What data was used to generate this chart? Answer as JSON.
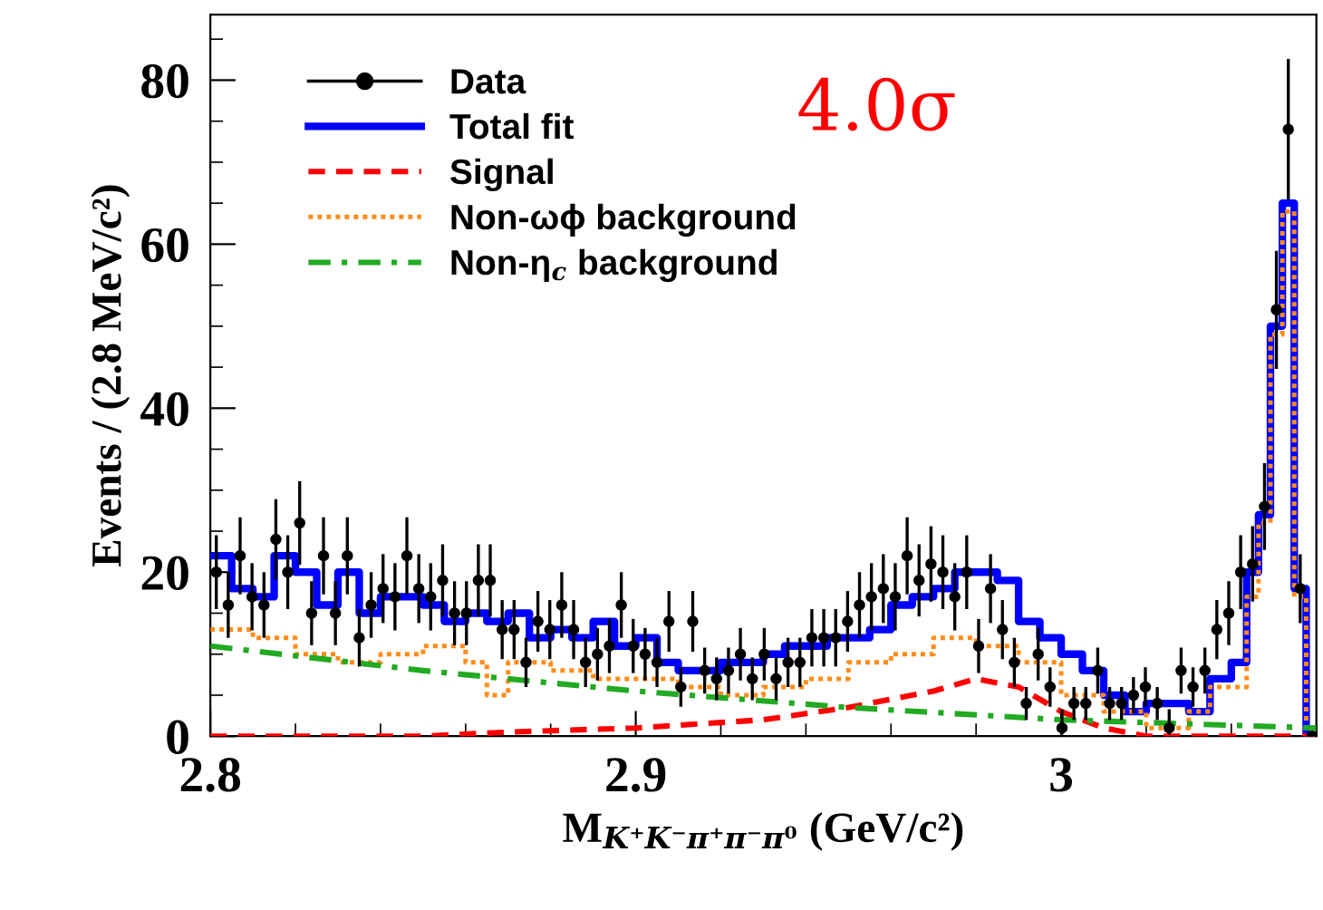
{
  "chart_data": {
    "type": "scatter",
    "xlabel": "M$_{K⁺K⁻π⁺π⁻π⁰}$ (GeV/c²)",
    "ylabel": "Events / (2.8 MeV/c²)",
    "annotations": [
      "4.0σ"
    ],
    "xlim": [
      2.8,
      3.06
    ],
    "xticks": [
      2.8,
      2.9,
      {
        "value": 3.0,
        "label": "3"
      }
    ],
    "ylim": [
      0,
      88
    ],
    "yticks": [
      0,
      20,
      40,
      60,
      80
    ],
    "grid": false,
    "legend": "top left",
    "series": [
      {
        "name": "Data",
        "color": "#000000",
        "marker": "circle",
        "x": [
          2.8014,
          2.8042,
          2.807,
          2.8098,
          2.8126,
          2.8154,
          2.8182,
          2.821,
          2.8238,
          2.8266,
          2.8294,
          2.8322,
          2.835,
          2.8378,
          2.8406,
          2.8434,
          2.8462,
          2.849,
          2.8518,
          2.8546,
          2.8574,
          2.8602,
          2.863,
          2.8658,
          2.8686,
          2.8714,
          2.8742,
          2.877,
          2.8798,
          2.8826,
          2.8854,
          2.8882,
          2.891,
          2.8938,
          2.8966,
          2.8994,
          2.9022,
          2.905,
          2.9078,
          2.9106,
          2.9134,
          2.9162,
          2.919,
          2.9218,
          2.9246,
          2.9274,
          2.9302,
          2.933,
          2.9358,
          2.9386,
          2.9414,
          2.9442,
          2.947,
          2.9498,
          2.9526,
          2.9554,
          2.9582,
          2.961,
          2.9638,
          2.9666,
          2.9694,
          2.9722,
          2.975,
          2.9778,
          2.9806,
          2.9834,
          2.9862,
          2.989,
          2.9918,
          2.9946,
          2.9974,
          3.0002,
          3.003,
          3.0058,
          3.0086,
          3.0114,
          3.0142,
          3.017,
          3.0198,
          3.0226,
          3.0254,
          3.0282,
          3.031,
          3.0338,
          3.0366,
          3.0394,
          3.0422,
          3.045,
          3.0478,
          3.0506,
          3.0534,
          3.0562,
          3.059
        ],
        "values": [
          20,
          16,
          22,
          17,
          16,
          24,
          20,
          26,
          15,
          22,
          15,
          22,
          12,
          16,
          18,
          17,
          22,
          18,
          17,
          19,
          15,
          15,
          19,
          19,
          13,
          13,
          9,
          14,
          13,
          16,
          13,
          9,
          10,
          11,
          16,
          11,
          10,
          9,
          14,
          6,
          14,
          8,
          7,
          8,
          10,
          7,
          10,
          7,
          9,
          9,
          12,
          12,
          12,
          14,
          16,
          17,
          18,
          17,
          22,
          19,
          21,
          20,
          17,
          20,
          11,
          18,
          13,
          9,
          4,
          10,
          6,
          1,
          4,
          4,
          8,
          4,
          4,
          5,
          6,
          4,
          1,
          8,
          6,
          8,
          13,
          15,
          20,
          21,
          28,
          52,
          74,
          18,
          0
        ],
        "errors": [
          4.5,
          4,
          4.7,
          4.1,
          4,
          4.9,
          4.5,
          5.1,
          3.9,
          4.7,
          3.9,
          4.7,
          3.5,
          4,
          4.2,
          4.1,
          4.7,
          4.2,
          4.1,
          4.4,
          3.9,
          3.9,
          4.4,
          4.4,
          3.6,
          3.6,
          3,
          3.7,
          3.6,
          4,
          3.6,
          3,
          3.2,
          3.3,
          4,
          3.3,
          3.2,
          3,
          3.7,
          2.4,
          3.7,
          2.8,
          2.6,
          2.8,
          3.2,
          2.6,
          3.2,
          2.6,
          3,
          3,
          3.5,
          3.5,
          3.5,
          3.7,
          4,
          4.1,
          4.2,
          4.1,
          4.7,
          4.4,
          4.6,
          4.5,
          4.1,
          4.5,
          3.3,
          4.2,
          3.6,
          3,
          2,
          3.2,
          2.4,
          [
            0.2,
            3.3
          ],
          2,
          2,
          2.8,
          2,
          2,
          2.2,
          2.4,
          2,
          [
            0.2,
            3.3
          ],
          2.8,
          2.4,
          2.8,
          3.6,
          3.9,
          4.5,
          4.6,
          5.3,
          7.2,
          8.6,
          4.2,
          null
        ]
      },
      {
        "name": "Total fit",
        "type": "step",
        "color": "#0000ff",
        "line_style": "solid",
        "x": [
          2.8,
          2.805,
          2.81,
          2.815,
          2.82,
          2.825,
          2.83,
          2.835,
          2.84,
          2.845,
          2.85,
          2.855,
          2.86,
          2.865,
          2.87,
          2.875,
          2.88,
          2.885,
          2.89,
          2.895,
          2.9,
          2.905,
          2.91,
          2.915,
          2.92,
          2.925,
          2.93,
          2.935,
          2.94,
          2.945,
          2.95,
          2.955,
          2.96,
          2.965,
          2.97,
          2.975,
          2.98,
          2.985,
          2.99,
          2.995,
          3.0,
          3.005,
          3.01,
          3.015,
          3.02,
          3.025,
          3.03,
          3.035,
          3.04,
          3.0436,
          3.0464,
          3.0492,
          3.052,
          3.0548,
          3.0576,
          3.06
        ],
        "values": [
          22,
          18,
          17,
          22,
          20,
          16,
          20,
          15,
          17,
          17,
          16,
          14,
          15,
          14,
          15,
          12,
          13,
          12,
          14,
          11,
          12,
          9,
          8,
          8,
          9,
          9,
          10,
          11,
          11,
          12,
          12,
          13,
          16,
          17,
          18,
          20,
          20,
          19,
          14,
          12,
          10,
          8,
          5,
          3,
          4,
          4,
          3,
          7,
          9,
          20,
          27,
          50,
          65,
          18,
          0,
          0
        ]
      },
      {
        "name": "Signal",
        "type": "line",
        "color": "#ff0000",
        "line_style": "dashed",
        "x": [
          2.8,
          2.85,
          2.87,
          2.9,
          2.93,
          2.95,
          2.97,
          2.98,
          2.99,
          3.0,
          3.01,
          3.02,
          3.06
        ],
        "values": [
          0,
          0,
          0.5,
          1,
          2,
          3.5,
          5.5,
          7,
          6,
          3,
          1,
          0,
          0
        ]
      },
      {
        "name": "Non-ωϕ background",
        "type": "step",
        "color": "#ff8c1a",
        "line_style": "dotted",
        "x": [
          2.8,
          2.81,
          2.82,
          2.83,
          2.84,
          2.85,
          2.86,
          2.865,
          2.87,
          2.88,
          2.89,
          2.9,
          2.91,
          2.92,
          2.93,
          2.94,
          2.95,
          2.96,
          2.97,
          2.98,
          2.99,
          3.0,
          3.01,
          3.02,
          3.03,
          3.035,
          3.0436,
          3.0464,
          3.0492,
          3.052,
          3.0548,
          3.0576,
          3.06
        ],
        "values": [
          13,
          12,
          10,
          9,
          10,
          11,
          9,
          5,
          9,
          8,
          7,
          7,
          6,
          5,
          6,
          7,
          9,
          10,
          12,
          11,
          9,
          5,
          3,
          1,
          3,
          6,
          17,
          26,
          49,
          64,
          17,
          0,
          0
        ]
      },
      {
        "name": "Non-η$_{c}$ background",
        "type": "line",
        "color": "#22aa22",
        "line_style": "dashdot",
        "x": [
          2.8,
          2.85,
          2.9,
          2.95,
          3.0,
          3.06
        ],
        "values": [
          11,
          8,
          5.5,
          3.5,
          2,
          1
        ]
      }
    ]
  }
}
